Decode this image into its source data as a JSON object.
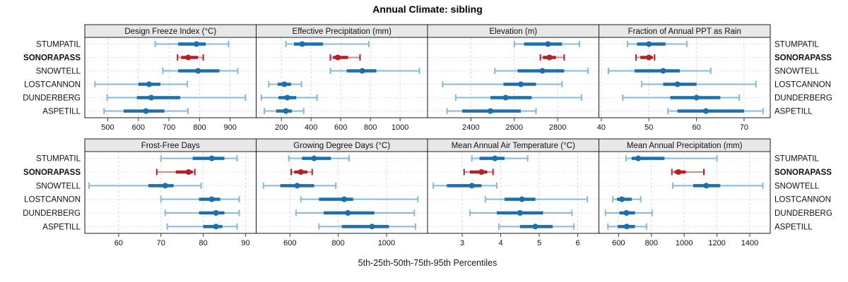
{
  "title": "Annual Climate: sibling",
  "caption": "5th-25th-50th-75th-95th Percentiles",
  "stations": [
    "STUMPATIL",
    "SONORAPASS",
    "SNOWTELL",
    "LOSTCANNON",
    "DUNDERBERG",
    "ASPETILL"
  ],
  "highlight_station": "SONORAPASS",
  "colors": {
    "series": "#1b6fae",
    "series_light": "#85b9da",
    "highlight": "#b52025",
    "highlight_light": "#d4898b",
    "grid": "#d8d8d8",
    "strip_bg": "#e8e8e8",
    "border": "#1a1a1a",
    "tick": "#404040",
    "label": "#111111"
  },
  "chart_data": {
    "type": "scatter",
    "subtype": "dot-plus-percentile-interval trellis",
    "layout": {
      "rows": 2,
      "cols": 4,
      "grid": "dashed"
    },
    "percentiles": [
      5,
      25,
      50,
      75,
      95
    ],
    "categories": [
      "STUMPATIL",
      "SONORAPASS",
      "SNOWTELL",
      "LOSTCANNON",
      "DUNDERBERG",
      "ASPETILL"
    ],
    "highlight": "SONORAPASS",
    "panels": [
      {
        "title": "Design Freeze Index (°C)",
        "xlim": [
          425,
          985
        ],
        "ticks": [
          500,
          600,
          700,
          800,
          900
        ],
        "series": {
          "STUMPATIL": [
            655,
            730,
            790,
            820,
            895
          ],
          "SONORAPASS": [
            728,
            740,
            763,
            795,
            812
          ],
          "SNOWTELL": [
            680,
            730,
            795,
            865,
            925
          ],
          "LOSTCANNON": [
            458,
            600,
            635,
            672,
            760
          ],
          "DUNDERBERG": [
            498,
            595,
            642,
            737,
            950
          ],
          "ASPETILL": [
            488,
            552,
            625,
            685,
            762
          ]
        }
      },
      {
        "title": "Effective Precipitation (mm)",
        "xlim": [
          30,
          1185
        ],
        "ticks": [
          200,
          400,
          600,
          800,
          1000
        ],
        "series": {
          "STUMPATIL": [
            230,
            285,
            340,
            480,
            790
          ],
          "SONORAPASS": [
            530,
            548,
            580,
            650,
            730
          ],
          "SNOWTELL": [
            530,
            640,
            745,
            840,
            1130
          ],
          "LOSTCANNON": [
            115,
            175,
            220,
            265,
            335
          ],
          "DUNDERBERG": [
            65,
            180,
            240,
            300,
            440
          ],
          "ASPETILL": [
            85,
            165,
            230,
            270,
            350
          ]
        }
      },
      {
        "title": "Elevation (m)",
        "xlim": [
          2200,
          2990
        ],
        "ticks": [
          2400,
          2600,
          2800
        ],
        "series": {
          "STUMPATIL": [
            2600,
            2645,
            2755,
            2820,
            2900
          ],
          "SONORAPASS": [
            2720,
            2732,
            2762,
            2792,
            2830
          ],
          "SNOWTELL": [
            2510,
            2615,
            2730,
            2830,
            2940
          ],
          "LOSTCANNON": [
            2270,
            2550,
            2630,
            2700,
            2820
          ],
          "DUNDERBERG": [
            2330,
            2490,
            2560,
            2680,
            2910
          ],
          "ASPETILL": [
            2290,
            2360,
            2490,
            2630,
            2700
          ]
        }
      },
      {
        "title": "Fraction of Annual PPT as Rain",
        "xlim": [
          39.5,
          75.5
        ],
        "ticks": [
          40,
          50,
          60,
          70
        ],
        "series": {
          "STUMPATIL": [
            45.5,
            47.5,
            50,
            53.5,
            58
          ],
          "SONORAPASS": [
            47.3,
            48.2,
            50,
            50.8,
            51.2
          ],
          "SNOWTELL": [
            41.5,
            47,
            53,
            56.5,
            63
          ],
          "LOSTCANNON": [
            48.5,
            53,
            56,
            60,
            72.5
          ],
          "DUNDERBERG": [
            44.5,
            54.5,
            60,
            65,
            69
          ],
          "ASPETILL": [
            54,
            56,
            62,
            70,
            74
          ]
        }
      },
      {
        "title": "Frost-Free Days",
        "xlim": [
          52,
          92.5
        ],
        "ticks": [
          60,
          70,
          80,
          90
        ],
        "series": {
          "STUMPATIL": [
            70,
            77.5,
            82,
            85,
            88
          ],
          "SONORAPASS": [
            69,
            73.5,
            76.5,
            77.5,
            78
          ],
          "SNOWTELL": [
            53,
            67,
            71,
            73,
            79.5
          ],
          "LOSTCANNON": [
            70,
            79,
            82,
            84,
            88.5
          ],
          "DUNDERBERG": [
            71,
            79,
            83,
            85,
            88.5
          ],
          "ASPETILL": [
            71.5,
            80,
            83,
            84.5,
            88
          ]
        }
      },
      {
        "title": "Growing Degree Days (°C)",
        "xlim": [
          460,
          1170
        ],
        "ticks": [
          600,
          800,
          1000
        ],
        "series": {
          "STUMPATIL": [
            595,
            650,
            700,
            770,
            845
          ],
          "SONORAPASS": [
            605,
            618,
            645,
            672,
            692
          ],
          "SNOWTELL": [
            490,
            560,
            630,
            700,
            790
          ],
          "LOSTCANNON": [
            645,
            720,
            825,
            862,
            1130
          ],
          "DUNDERBERG": [
            625,
            740,
            840,
            950,
            1115
          ],
          "ASPETILL": [
            720,
            815,
            940,
            1010,
            1120
          ]
        }
      },
      {
        "title": "Mean Annual Air Temperature (°C)",
        "xlim": [
          2.1,
          6.55
        ],
        "ticks": [
          3,
          4,
          5,
          6
        ],
        "series": {
          "STUMPATIL": [
            3.25,
            3.45,
            3.85,
            4.1,
            4.7
          ],
          "SONORAPASS": [
            3.05,
            3.2,
            3.5,
            3.65,
            3.8
          ],
          "SNOWTELL": [
            2.25,
            2.6,
            3.25,
            3.5,
            3.9
          ],
          "LOSTCANNON": [
            3.6,
            4.1,
            4.55,
            4.9,
            6.25
          ],
          "DUNDERBERG": [
            3.2,
            3.9,
            4.5,
            5.1,
            5.85
          ],
          "ASPETILL": [
            3.95,
            4.5,
            4.9,
            5.35,
            5.9
          ]
        }
      },
      {
        "title": "Mean Annual Precipitation (mm)",
        "xlim": [
          480,
          1525
        ],
        "ticks": [
          600,
          800,
          1000,
          1200,
          1400
        ],
        "series": {
          "STUMPATIL": [
            645,
            680,
            720,
            880,
            1200
          ],
          "SONORAPASS": [
            925,
            940,
            965,
            1010,
            1120
          ],
          "SNOWTELL": [
            930,
            1055,
            1135,
            1220,
            1480
          ],
          "LOSTCANNON": [
            565,
            590,
            620,
            680,
            735
          ],
          "DUNDERBERG": [
            520,
            605,
            648,
            700,
            805
          ],
          "ASPETILL": [
            535,
            595,
            650,
            700,
            770
          ]
        }
      }
    ]
  }
}
